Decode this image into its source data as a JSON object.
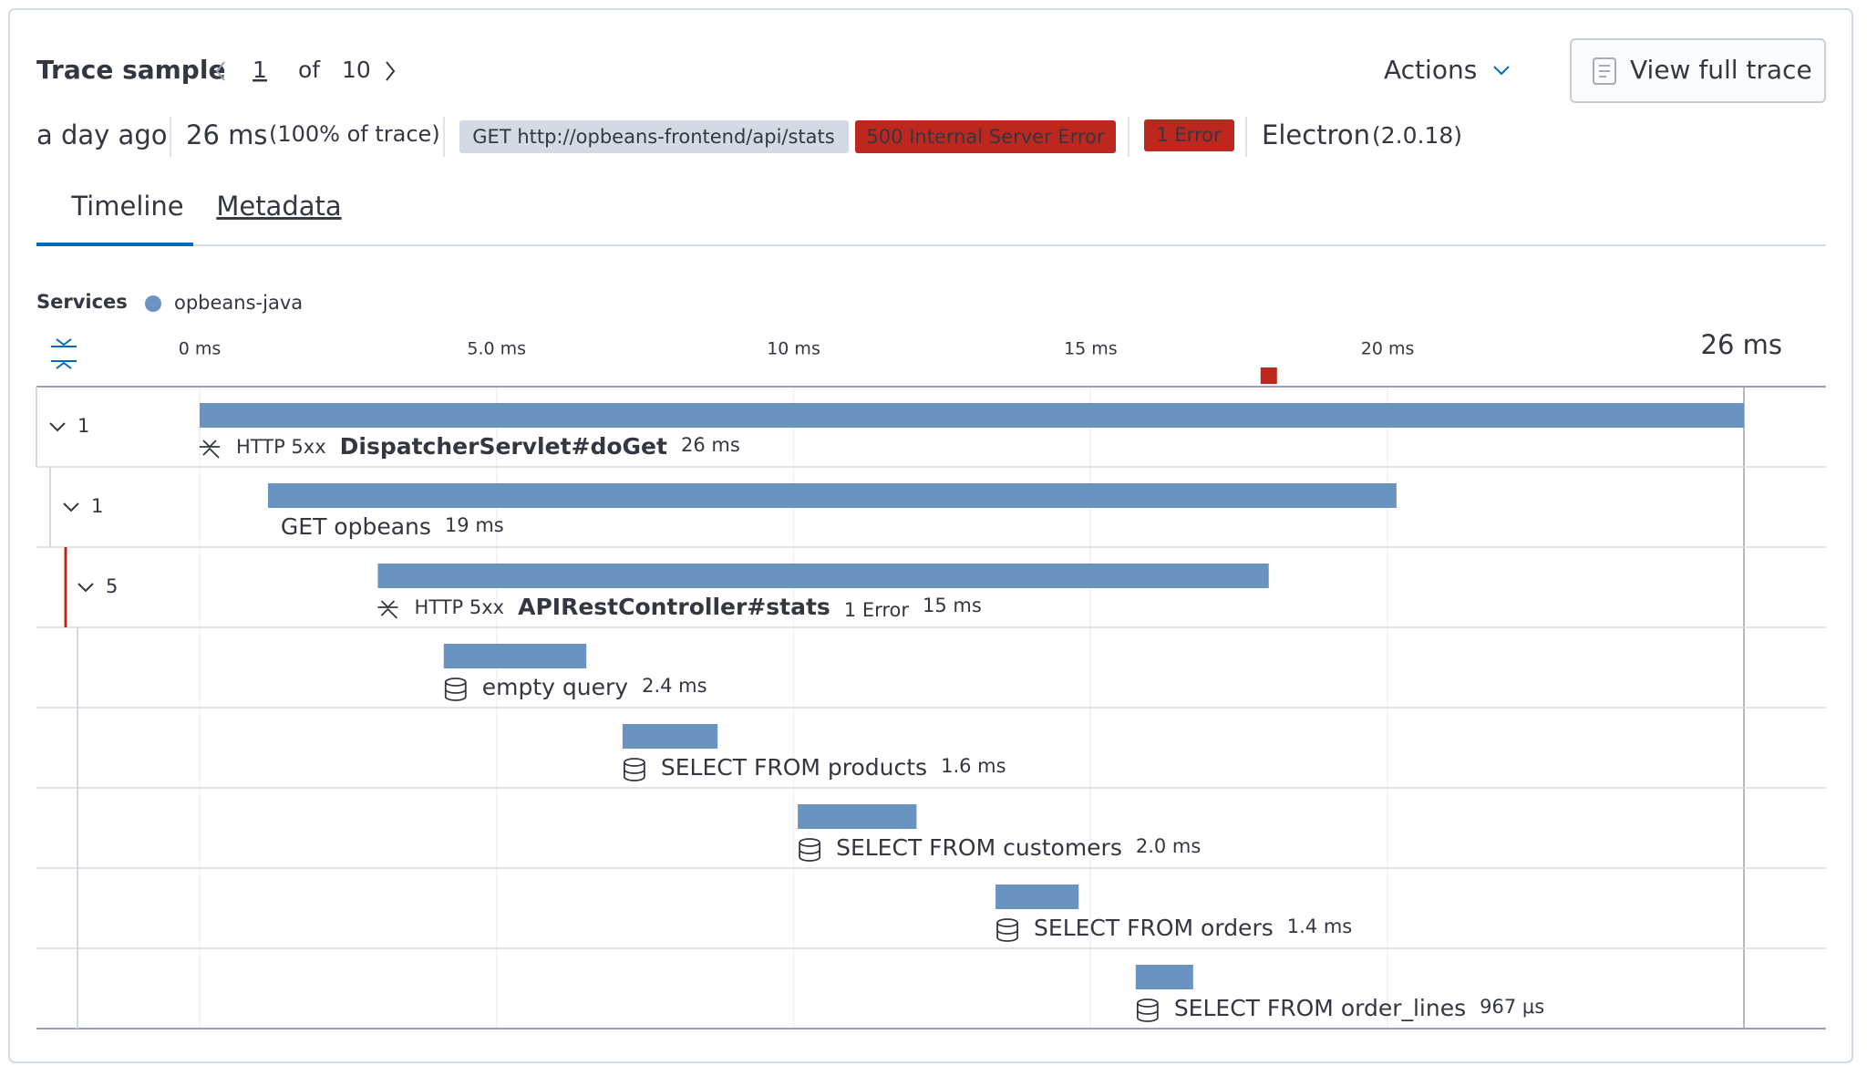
{
  "header": {
    "title": "Trace sample",
    "current": "1",
    "of": "of",
    "total": "10",
    "actions": "Actions",
    "view_full_trace": "View full trace"
  },
  "summary": {
    "age": "a day ago",
    "duration": "26 ms",
    "share": "(100% of trace)",
    "request": "GET http://opbeans-frontend/api/stats",
    "status": "500 Internal Server Error",
    "errors": "1 Error",
    "agent": "Electron",
    "agent_version": "(2.0.18)"
  },
  "tabs": [
    "Timeline",
    "Metadata"
  ],
  "legend": {
    "title": "Services",
    "items": [
      {
        "name": "opbeans-java",
        "color": "#6b93c1"
      }
    ]
  },
  "timeline": {
    "xlim": [
      0,
      26
    ],
    "ticks": [
      {
        "value": 0,
        "label": "0 ms"
      },
      {
        "value": 5,
        "label": "5.0 ms"
      },
      {
        "value": 10,
        "label": "10 ms"
      },
      {
        "value": 15,
        "label": "15 ms"
      },
      {
        "value": 20,
        "label": "20 ms"
      }
    ],
    "end": {
      "value": 26,
      "label": "26 ms"
    },
    "error_marker": 18.0,
    "spans": [
      {
        "children": 1,
        "kind": "http",
        "type_label": "HTTP 5xx",
        "name": "DispatcherServlet#doGet",
        "start": 0,
        "duration": 26,
        "duration_label": "26 ms"
      },
      {
        "children": 1,
        "kind": "plain",
        "name": "GET opbeans",
        "start": 1.15,
        "duration": 19,
        "duration_label": "19 ms"
      },
      {
        "children": 5,
        "kind": "http",
        "type_label": "HTTP 5xx",
        "name": "APIRestController#stats",
        "error_label": "1 Error",
        "start": 3.0,
        "duration": 15,
        "duration_label": "15 ms"
      },
      {
        "kind": "db",
        "name": "empty query",
        "start": 4.11,
        "duration": 2.4,
        "duration_label": "2.4 ms"
      },
      {
        "kind": "db",
        "name": "SELECT FROM products",
        "start": 7.12,
        "duration": 1.6,
        "duration_label": "1.6 ms"
      },
      {
        "kind": "db",
        "name": "SELECT FROM customers",
        "start": 10.07,
        "duration": 2.0,
        "duration_label": "2.0 ms"
      },
      {
        "kind": "db",
        "name": "SELECT FROM orders",
        "start": 13.4,
        "duration": 1.4,
        "duration_label": "1.4 ms"
      },
      {
        "kind": "db",
        "name": "SELECT FROM order_lines",
        "start": 15.76,
        "duration": 0.967,
        "duration_label": "967 μs"
      }
    ]
  }
}
